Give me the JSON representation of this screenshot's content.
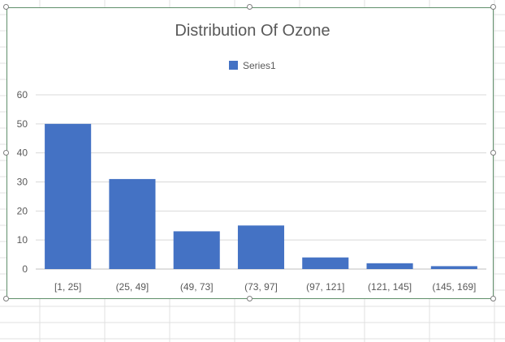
{
  "chart_data": {
    "type": "bar",
    "title": "Distribution Of Ozone",
    "xlabel": "",
    "ylabel": "",
    "categories": [
      "[1, 25]",
      "(25, 49]",
      "(49, 73]",
      "(73, 97]",
      "(97, 121]",
      "(121, 145]",
      "(145, 169]"
    ],
    "series": [
      {
        "name": "Series1",
        "values": [
          50,
          31,
          13,
          15,
          4,
          2,
          1
        ]
      }
    ],
    "ylim": [
      0,
      60
    ],
    "yticks": [
      0,
      10,
      20,
      30,
      40,
      50,
      60
    ],
    "grid": true,
    "legend_position": "top",
    "colors": {
      "bar": "#4472c4",
      "grid": "#d9d9d9",
      "text": "#595959",
      "title": "#595959"
    }
  }
}
